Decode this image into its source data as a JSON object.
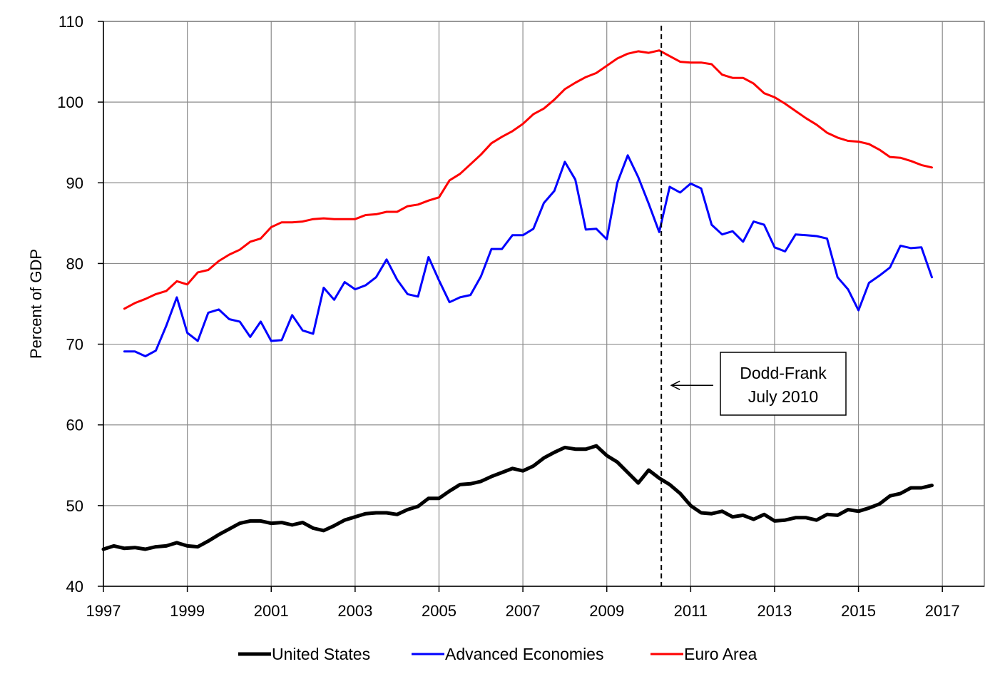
{
  "chart_data": {
    "type": "line",
    "title": "",
    "xlabel": "",
    "ylabel": "Percent of GDP",
    "xlim": [
      1997,
      2018
    ],
    "ylim": [
      40,
      110
    ],
    "x_ticks": [
      "1997",
      "1999",
      "2001",
      "2003",
      "2005",
      "2007",
      "2009",
      "2011",
      "2013",
      "2015",
      "2017"
    ],
    "y_ticks": [
      "40",
      "50",
      "60",
      "70",
      "80",
      "90",
      "100",
      "110"
    ],
    "grid": true,
    "legend_position": "bottom",
    "vline": {
      "x": 2010.3
    },
    "annotation": {
      "line1": "Dodd-Frank",
      "line2": "July 2010"
    },
    "series": [
      {
        "name": "United States",
        "color": "#000000",
        "x": [
          1997.0,
          1997.25,
          1997.5,
          1997.75,
          1998.0,
          1998.25,
          1998.5,
          1998.75,
          1999.0,
          1999.25,
          1999.5,
          1999.75,
          2000.0,
          2000.25,
          2000.5,
          2000.75,
          2001.0,
          2001.25,
          2001.5,
          2001.75,
          2002.0,
          2002.25,
          2002.5,
          2002.75,
          2003.0,
          2003.25,
          2003.5,
          2003.75,
          2004.0,
          2004.25,
          2004.5,
          2004.75,
          2005.0,
          2005.25,
          2005.5,
          2005.75,
          2006.0,
          2006.25,
          2006.5,
          2006.75,
          2007.0,
          2007.25,
          2007.5,
          2007.75,
          2008.0,
          2008.25,
          2008.5,
          2008.75,
          2009.0,
          2009.25,
          2009.5,
          2009.75,
          2010.0,
          2010.25,
          2010.5,
          2010.75,
          2011.0,
          2011.25,
          2011.5,
          2011.75,
          2012.0,
          2012.25,
          2012.5,
          2012.75,
          2013.0,
          2013.25,
          2013.5,
          2013.75,
          2014.0,
          2014.25,
          2014.5,
          2014.75,
          2015.0,
          2015.25,
          2015.5,
          2015.75,
          2016.0,
          2016.25,
          2016.5,
          2016.75
        ],
        "values": [
          44.6,
          45.0,
          44.7,
          44.8,
          44.6,
          44.9,
          45.0,
          45.4,
          45.0,
          44.9,
          45.6,
          46.4,
          47.1,
          47.8,
          48.1,
          48.1,
          47.8,
          47.9,
          47.6,
          47.9,
          47.2,
          46.9,
          47.5,
          48.2,
          48.6,
          49.0,
          49.1,
          49.1,
          48.9,
          49.5,
          49.9,
          50.9,
          50.9,
          51.8,
          52.6,
          52.7,
          53.0,
          53.6,
          54.1,
          54.6,
          54.3,
          54.9,
          55.9,
          56.6,
          57.2,
          57.0,
          57.0,
          57.4,
          56.2,
          55.4,
          54.1,
          52.8,
          54.4,
          53.4,
          52.6,
          51.5,
          50.0,
          49.1,
          49.0,
          49.3,
          48.6,
          48.8,
          48.3,
          48.9,
          48.1,
          48.2,
          48.5,
          48.5,
          48.2,
          48.9,
          48.8,
          49.5,
          49.3,
          49.7,
          50.2,
          51.2,
          51.5,
          52.2,
          52.2,
          52.5
        ]
      },
      {
        "name": "Advanced Economies",
        "color": "#0000ff",
        "x": [
          1997.5,
          1997.75,
          1998.0,
          1998.25,
          1998.5,
          1998.75,
          1999.0,
          1999.25,
          1999.5,
          1999.75,
          2000.0,
          2000.25,
          2000.5,
          2000.75,
          2001.0,
          2001.25,
          2001.5,
          2001.75,
          2002.0,
          2002.25,
          2002.5,
          2002.75,
          2003.0,
          2003.25,
          2003.5,
          2003.75,
          2004.0,
          2004.25,
          2004.5,
          2004.75,
          2005.0,
          2005.25,
          2005.5,
          2005.75,
          2006.0,
          2006.25,
          2006.5,
          2006.75,
          2007.0,
          2007.25,
          2007.5,
          2007.75,
          2008.0,
          2008.25,
          2008.5,
          2008.75,
          2009.0,
          2009.25,
          2009.5,
          2009.75,
          2010.0,
          2010.25,
          2010.5,
          2010.75,
          2011.0,
          2011.25,
          2011.5,
          2011.75,
          2012.0,
          2012.25,
          2012.5,
          2012.75,
          2013.0,
          2013.25,
          2013.5,
          2013.75,
          2014.0,
          2014.25,
          2014.5,
          2014.75,
          2015.0,
          2015.25,
          2015.5,
          2015.75,
          2016.0,
          2016.25,
          2016.5,
          2016.75
        ],
        "values": [
          69.1,
          69.1,
          68.5,
          69.2,
          72.3,
          75.8,
          71.4,
          70.4,
          73.9,
          74.3,
          73.1,
          72.8,
          70.9,
          72.8,
          70.4,
          70.5,
          73.6,
          71.7,
          71.3,
          77.0,
          75.5,
          77.7,
          76.8,
          77.3,
          78.3,
          80.5,
          78.0,
          76.2,
          75.9,
          80.8,
          77.9,
          75.2,
          75.8,
          76.1,
          78.4,
          81.8,
          81.8,
          83.5,
          83.5,
          84.3,
          87.5,
          89.0,
          92.6,
          90.4,
          84.2,
          84.3,
          83.0,
          90.0,
          93.4,
          90.7,
          87.4,
          83.9,
          89.5,
          88.8,
          89.9,
          89.3,
          84.8,
          83.6,
          84.0,
          82.7,
          85.2,
          84.8,
          82.0,
          81.5,
          83.6,
          83.5,
          83.4,
          83.1,
          78.3,
          76.8,
          74.2,
          77.6,
          78.5,
          79.5,
          82.2,
          81.9,
          82.0,
          78.3
        ]
      },
      {
        "name": "Euro Area",
        "color": "#ff0000",
        "x": [
          1997.5,
          1997.75,
          1998.0,
          1998.25,
          1998.5,
          1998.75,
          1999.0,
          1999.25,
          1999.5,
          1999.75,
          2000.0,
          2000.25,
          2000.5,
          2000.75,
          2001.0,
          2001.25,
          2001.5,
          2001.75,
          2002.0,
          2002.25,
          2002.5,
          2002.75,
          2003.0,
          2003.25,
          2003.5,
          2003.75,
          2004.0,
          2004.25,
          2004.5,
          2004.75,
          2005.0,
          2005.25,
          2005.5,
          2005.75,
          2006.0,
          2006.25,
          2006.5,
          2006.75,
          2007.0,
          2007.25,
          2007.5,
          2007.75,
          2008.0,
          2008.25,
          2008.5,
          2008.75,
          2009.0,
          2009.25,
          2009.5,
          2009.75,
          2010.0,
          2010.25,
          2010.5,
          2010.75,
          2011.0,
          2011.25,
          2011.5,
          2011.75,
          2012.0,
          2012.25,
          2012.5,
          2012.75,
          2013.0,
          2013.25,
          2013.5,
          2013.75,
          2014.0,
          2014.25,
          2014.5,
          2014.75,
          2015.0,
          2015.25,
          2015.5,
          2015.75,
          2016.0,
          2016.25,
          2016.5,
          2016.75
        ],
        "values": [
          74.4,
          75.1,
          75.6,
          76.2,
          76.6,
          77.8,
          77.4,
          78.9,
          79.2,
          80.3,
          81.1,
          81.7,
          82.7,
          83.1,
          84.5,
          85.1,
          85.1,
          85.2,
          85.5,
          85.6,
          85.5,
          85.5,
          85.5,
          86.0,
          86.1,
          86.4,
          86.4,
          87.1,
          87.3,
          87.8,
          88.2,
          90.3,
          91.1,
          92.3,
          93.5,
          94.9,
          95.7,
          96.4,
          97.3,
          98.5,
          99.2,
          100.3,
          101.6,
          102.4,
          103.1,
          103.6,
          104.5,
          105.4,
          106.0,
          106.3,
          106.1,
          106.4,
          105.7,
          105.0,
          104.9,
          104.9,
          104.7,
          103.4,
          103.0,
          103.0,
          102.3,
          101.1,
          100.6,
          99.8,
          98.9,
          98.0,
          97.2,
          96.2,
          95.6,
          95.2,
          95.1,
          94.8,
          94.1,
          93.2,
          93.1,
          92.7,
          92.2,
          91.9
        ]
      }
    ]
  }
}
